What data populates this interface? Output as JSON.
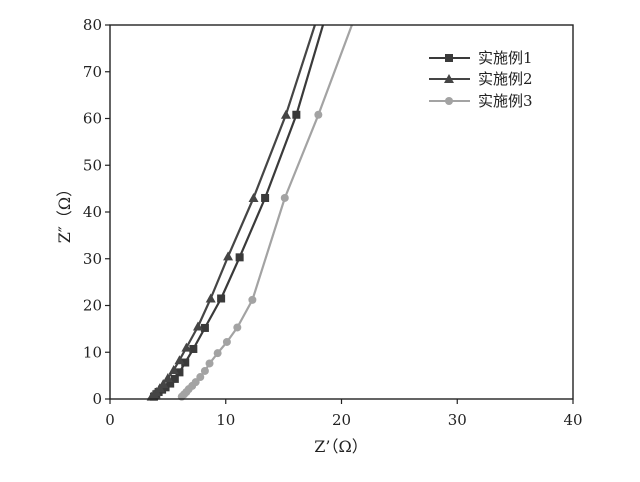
{
  "chart_data": {
    "type": "line",
    "title": "",
    "xlabel": "Z’（Ω）",
    "ylabel": "Z″（Ω）",
    "xlim": [
      0,
      40
    ],
    "ylim": [
      0,
      80
    ],
    "xticks": [
      "0",
      "10",
      "20",
      "30",
      "40"
    ],
    "yticks": [
      "0",
      "10",
      "20",
      "30",
      "40",
      "50",
      "60",
      "70",
      "80"
    ],
    "grid": false,
    "legend_position": "top-right",
    "series": [
      {
        "name": "实施例1",
        "marker": "square",
        "color": "#3a3a3a",
        "x": [
          3.8,
          4.0,
          4.2,
          4.5,
          4.8,
          5.2,
          5.6,
          6.0,
          6.5,
          7.2,
          8.2,
          9.6,
          11.2,
          13.4,
          16.1
        ],
        "y": [
          0.5,
          1.0,
          1.5,
          2.0,
          2.5,
          3.3,
          4.3,
          5.7,
          7.8,
          10.7,
          15.2,
          21.5,
          30.3,
          43.0,
          60.8
        ],
        "line_x": [
          3.4,
          3.8,
          4.0,
          4.2,
          4.5,
          4.8,
          5.2,
          5.6,
          6.0,
          6.5,
          7.2,
          8.2,
          9.6,
          11.2,
          13.4,
          16.1,
          18.4
        ],
        "line_y": [
          0.0,
          0.5,
          1.0,
          1.5,
          2.0,
          2.5,
          3.3,
          4.3,
          5.7,
          7.8,
          10.7,
          15.2,
          21.5,
          30.3,
          43.0,
          60.8,
          80.0
        ]
      },
      {
        "name": "实施例2",
        "marker": "triangle",
        "color": "#454545",
        "x": [
          3.6,
          3.8,
          4.0,
          4.3,
          4.6,
          5.0,
          5.5,
          6.0,
          6.6,
          7.6,
          8.7,
          10.2,
          12.4,
          15.2
        ],
        "y": [
          0.5,
          1.0,
          1.5,
          2.3,
          3.2,
          4.5,
          6.2,
          8.3,
          11.0,
          15.5,
          21.5,
          30.5,
          43.0,
          60.8
        ],
        "line_x": [
          3.3,
          3.6,
          3.8,
          4.0,
          4.3,
          4.6,
          5.0,
          5.5,
          6.0,
          6.6,
          7.6,
          8.7,
          10.2,
          12.4,
          15.2,
          17.7
        ],
        "line_y": [
          0.0,
          0.5,
          1.0,
          1.5,
          2.3,
          3.2,
          4.5,
          6.2,
          8.3,
          11.0,
          15.5,
          21.5,
          30.5,
          43.0,
          60.8,
          80.0
        ]
      },
      {
        "name": "实施例3",
        "marker": "circle",
        "color": "#a3a3a3",
        "x": [
          6.2,
          6.4,
          6.6,
          6.8,
          7.1,
          7.4,
          7.8,
          8.2,
          8.6,
          9.3,
          10.1,
          11.0,
          12.3,
          15.1,
          18.0
        ],
        "y": [
          0.5,
          1.0,
          1.5,
          2.1,
          2.8,
          3.6,
          4.7,
          6.0,
          7.6,
          9.8,
          12.2,
          15.3,
          21.2,
          43.0,
          60.8
        ],
        "line_x": [
          6.0,
          6.2,
          6.4,
          6.6,
          6.8,
          7.1,
          7.4,
          7.8,
          8.2,
          8.6,
          9.3,
          10.1,
          11.0,
          12.3,
          15.1,
          18.0,
          20.9
        ],
        "line_y": [
          0.0,
          0.5,
          1.0,
          1.5,
          2.1,
          2.8,
          3.6,
          4.7,
          6.0,
          7.6,
          9.8,
          12.2,
          15.3,
          21.2,
          43.0,
          60.8,
          80.0
        ]
      }
    ]
  }
}
